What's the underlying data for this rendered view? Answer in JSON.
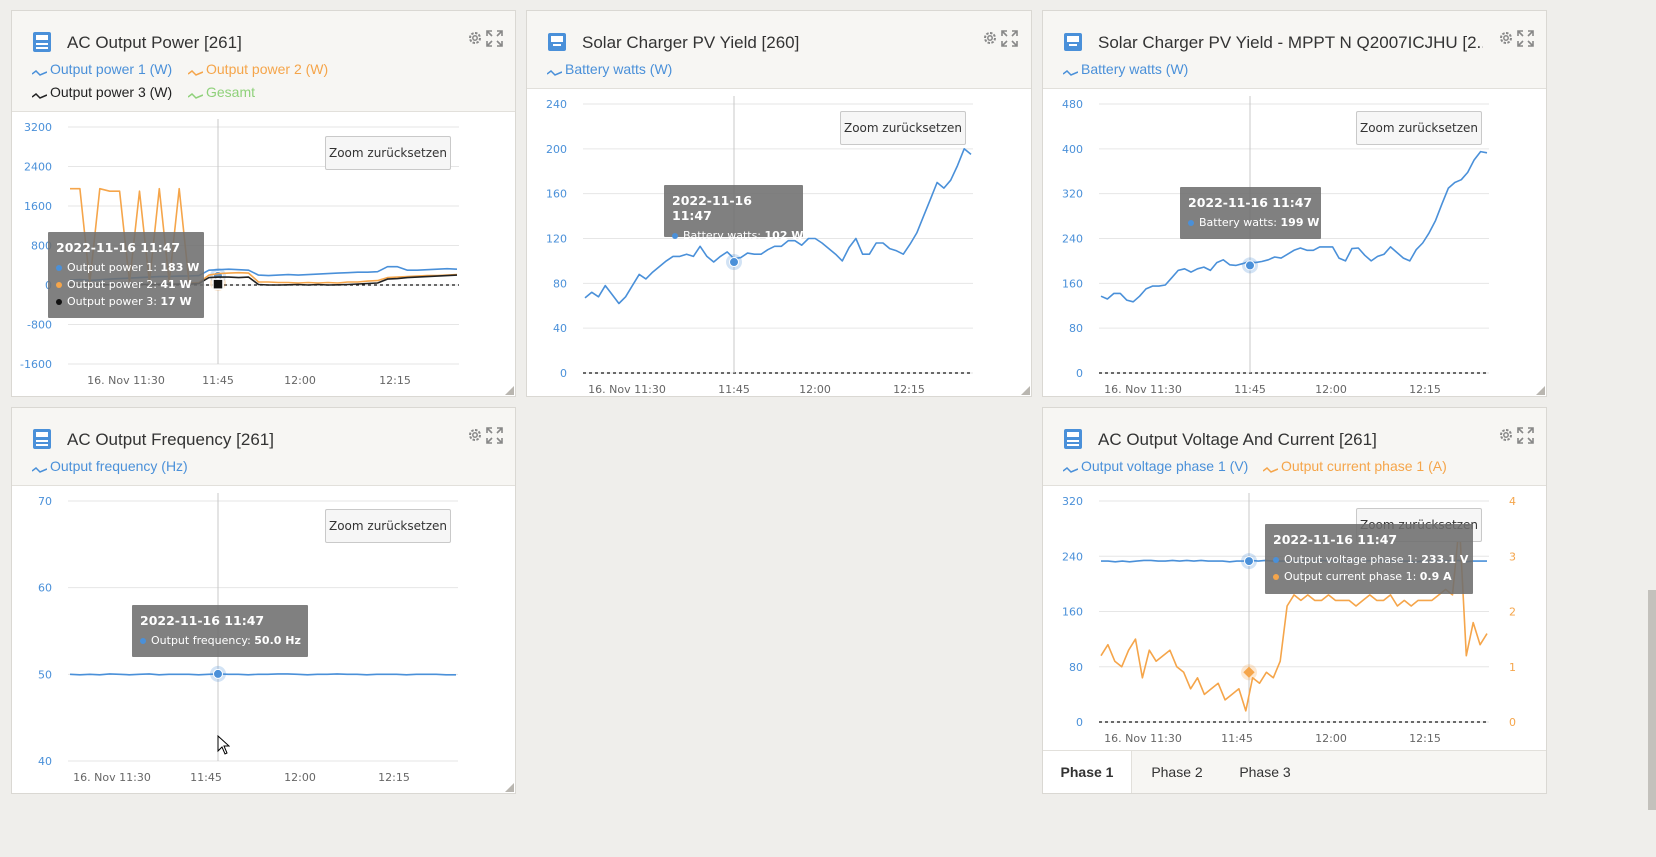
{
  "widgets": {
    "ac_power": {
      "title": "AC Output Power [261]",
      "legend": [
        {
          "label": "Output power 1 (W)",
          "color": "#4a90d9"
        },
        {
          "label": "Output power 2 (W)",
          "color": "#f5a54a"
        },
        {
          "label": "Output power 3 (W)",
          "color": "#222222"
        },
        {
          "label": "Gesamt",
          "color": "#8fd17a"
        }
      ],
      "zoom_label": "Zoom zurücksetzen",
      "tooltip": {
        "time": "2022-11-16 11:47",
        "rows": [
          {
            "label": "Output power 1: ",
            "value": "183 W",
            "color": "#4a90d9"
          },
          {
            "label": "Output power 2: ",
            "value": "41 W",
            "color": "#f5a54a"
          },
          {
            "label": "Output power 3: ",
            "value": "17 W",
            "color": "#111111"
          }
        ]
      }
    },
    "pv_yield_260": {
      "title": "Solar Charger PV Yield [260]",
      "legend": [
        {
          "label": "Battery watts (W)",
          "color": "#4a90d9"
        }
      ],
      "zoom_label": "Zoom zurücksetzen",
      "tooltip": {
        "time": "2022-11-16 11:47",
        "rows": [
          {
            "label": "Battery watts: ",
            "value": "102 W",
            "color": "#4a90d9"
          }
        ]
      }
    },
    "pv_yield_mppt": {
      "title": "Solar Charger PV Yield - MPPT N Q2007ICJHU [2...",
      "legend": [
        {
          "label": "Battery watts (W)",
          "color": "#4a90d9"
        }
      ],
      "zoom_label": "Zoom zurücksetzen",
      "tooltip": {
        "time": "2022-11-16 11:47",
        "rows": [
          {
            "label": "Battery watts: ",
            "value": "199 W",
            "color": "#4a90d9"
          }
        ]
      }
    },
    "ac_freq": {
      "title": "AC Output Frequency [261]",
      "legend": [
        {
          "label": "Output frequency (Hz)",
          "color": "#4a90d9"
        }
      ],
      "zoom_label": "Zoom zurücksetzen",
      "tooltip": {
        "time": "2022-11-16 11:47",
        "rows": [
          {
            "label": "Output frequency: ",
            "value": "50.0 Hz",
            "color": "#4a90d9"
          }
        ]
      }
    },
    "ac_vi": {
      "title": "AC Output Voltage And Current [261]",
      "legend": [
        {
          "label": "Output voltage phase 1 (V)",
          "color": "#4a90d9"
        },
        {
          "label": "Output current phase 1 (A)",
          "color": "#f5a54a"
        }
      ],
      "zoom_label": "Zoom zurücksetzen",
      "tooltip": {
        "time": "2022-11-16 11:47",
        "rows": [
          {
            "label": "Output voltage phase 1: ",
            "value": "233.1 V",
            "color": "#4a90d9"
          },
          {
            "label": "Output current phase 1: ",
            "value": "0.9 A",
            "color": "#f5a54a"
          }
        ]
      },
      "tabs": [
        "Phase 1",
        "Phase 2",
        "Phase 3"
      ],
      "active_tab": "Phase 1"
    }
  },
  "chart_data": [
    {
      "id": "ac_power",
      "type": "line",
      "x_ticks": [
        "16. Nov 11:30",
        "11:45",
        "12:00",
        "12:15"
      ],
      "y_ticks": [
        3200,
        2400,
        1600,
        800,
        0,
        -800,
        -1600
      ],
      "ylim": [
        -1600,
        3200
      ],
      "series": [
        {
          "name": "Output power 1 (W)",
          "color": "#4a90d9",
          "values": [
            100,
            110,
            95,
            105,
            120,
            130,
            140,
            150,
            160,
            170,
            175,
            180,
            183,
            190,
            300,
            310,
            320,
            310,
            300,
            200,
            190,
            200,
            210,
            200,
            210,
            220,
            230,
            240,
            250,
            260,
            260,
            270,
            370,
            370,
            300,
            300,
            310,
            320,
            330,
            320
          ]
        },
        {
          "name": "Output power 2 (W)",
          "color": "#f5a54a",
          "values": [
            1950,
            1950,
            50,
            1950,
            1900,
            1900,
            60,
            1900,
            60,
            1950,
            60,
            1950,
            41,
            50,
            200,
            230,
            240,
            250,
            240,
            60,
            60,
            50,
            50,
            40,
            50,
            40,
            50,
            40,
            60,
            60,
            80,
            90,
            150,
            160,
            170,
            180,
            190,
            190,
            200,
            210
          ]
        },
        {
          "name": "Output power 3 (W)",
          "color": "#222222",
          "values": [
            20,
            10,
            15,
            10,
            5,
            15,
            10,
            15,
            10,
            15,
            15,
            20,
            17,
            30,
            150,
            160,
            160,
            150,
            160,
            10,
            0,
            0,
            5,
            10,
            0,
            10,
            0,
            5,
            10,
            20,
            30,
            40,
            120,
            130,
            150,
            160,
            170,
            180,
            190,
            200
          ]
        }
      ]
    },
    {
      "id": "pv_yield_260",
      "type": "line",
      "x_ticks": [
        "16. Nov 11:30",
        "11:45",
        "12:00",
        "12:15"
      ],
      "y_ticks": [
        240,
        200,
        160,
        120,
        80,
        40,
        0
      ],
      "ylim": [
        0,
        240
      ],
      "series": [
        {
          "name": "Battery watts (W)",
          "color": "#4a90d9",
          "values": [
            67,
            72,
            68,
            78,
            70,
            62,
            68,
            78,
            88,
            84,
            90,
            95,
            100,
            104,
            104,
            106,
            104,
            113,
            104,
            99,
            104,
            108,
            102,
            103,
            107,
            106,
            106,
            110,
            113,
            113,
            118,
            118,
            114,
            120,
            120,
            116,
            111,
            106,
            100,
            112,
            120,
            106,
            106,
            116,
            116,
            111,
            109,
            106,
            115,
            125,
            140,
            155,
            170,
            165,
            172,
            185,
            200,
            195
          ]
        }
      ]
    },
    {
      "id": "pv_yield_mppt",
      "type": "line",
      "x_ticks": [
        "16. Nov 11:30",
        "11:45",
        "12:00",
        "12:15"
      ],
      "y_ticks": [
        480,
        400,
        320,
        240,
        160,
        80,
        0
      ],
      "ylim": [
        0,
        480
      ],
      "series": [
        {
          "name": "Battery watts (W)",
          "color": "#4a90d9",
          "values": [
            137,
            132,
            142,
            142,
            130,
            127,
            137,
            150,
            155,
            155,
            157,
            170,
            183,
            186,
            180,
            186,
            189,
            183,
            197,
            202,
            193,
            192,
            195,
            199,
            197,
            199,
            202,
            207,
            205,
            212,
            219,
            223,
            219,
            219,
            225,
            225,
            225,
            205,
            200,
            222,
            223,
            210,
            200,
            208,
            212,
            225,
            215,
            205,
            200,
            220,
            232,
            250,
            272,
            302,
            330,
            340,
            345,
            358,
            380,
            395,
            393
          ]
        }
      ]
    },
    {
      "id": "ac_freq",
      "type": "line",
      "x_ticks": [
        "16. Nov 11:30",
        "11:45",
        "12:00",
        "12:15"
      ],
      "y_ticks": [
        70,
        60,
        50,
        40
      ],
      "ylim": [
        40,
        70
      ],
      "series": [
        {
          "name": "Output frequency (Hz)",
          "color": "#4a90d9",
          "values": [
            50.0,
            49.95,
            50.0,
            49.95,
            50.05,
            50.0,
            49.95,
            50.0,
            50.05,
            49.95,
            50.0,
            50.0,
            50.0,
            49.95,
            50.0,
            50.05,
            50.0,
            50.0,
            49.95,
            50.0,
            50.0,
            50.05,
            50.05,
            50.0,
            49.95,
            50.0,
            50.0,
            50.05,
            50.0,
            50.0,
            49.95,
            50.0,
            50.0,
            50.0,
            49.95,
            50.0,
            50.0,
            50.0,
            49.95,
            49.95
          ]
        }
      ]
    },
    {
      "id": "ac_vi",
      "type": "line",
      "x_ticks": [
        "16. Nov 11:30",
        "11:45",
        "12:00",
        "12:15"
      ],
      "y_ticks": [
        320,
        240,
        160,
        80,
        0
      ],
      "ylim": [
        0,
        320
      ],
      "y2_ticks": [
        4,
        3,
        2,
        1,
        0
      ],
      "y2lim": [
        0,
        4
      ],
      "series": [
        {
          "name": "Output voltage phase 1 (V)",
          "color": "#4a90d9",
          "axis": "left",
          "values": [
            233,
            233,
            232,
            233,
            232,
            233,
            234,
            234,
            233,
            233,
            234,
            233,
            234,
            233,
            234,
            233,
            233,
            233,
            232,
            233,
            233,
            234,
            233,
            234,
            233,
            233,
            233,
            234,
            233,
            234,
            233,
            234,
            233,
            234,
            232,
            233,
            233,
            234,
            233,
            234,
            233,
            233,
            233,
            233,
            232,
            233,
            233,
            233,
            234,
            233,
            234,
            232,
            233,
            233,
            233
          ]
        },
        {
          "name": "Output current phase 1 (A)",
          "color": "#f5a54a",
          "axis": "right",
          "values": [
            1.2,
            1.4,
            1.1,
            1.0,
            1.3,
            1.5,
            0.8,
            1.3,
            1.1,
            1.2,
            1.3,
            1.0,
            0.9,
            0.6,
            0.8,
            0.5,
            0.6,
            0.7,
            0.4,
            0.5,
            0.6,
            0.2,
            0.8,
            0.7,
            0.9,
            0.8,
            1.1,
            2.1,
            2.3,
            2.2,
            2.3,
            2.2,
            2.2,
            2.3,
            2.2,
            2.2,
            2.2,
            2.1,
            2.2,
            2.3,
            2.2,
            2.2,
            2.3,
            2.1,
            2.2,
            2.1,
            2.2,
            2.2,
            2.2,
            2.3,
            2.4,
            2.3,
            3.6,
            1.2,
            1.8,
            1.4,
            1.6
          ]
        }
      ]
    }
  ]
}
